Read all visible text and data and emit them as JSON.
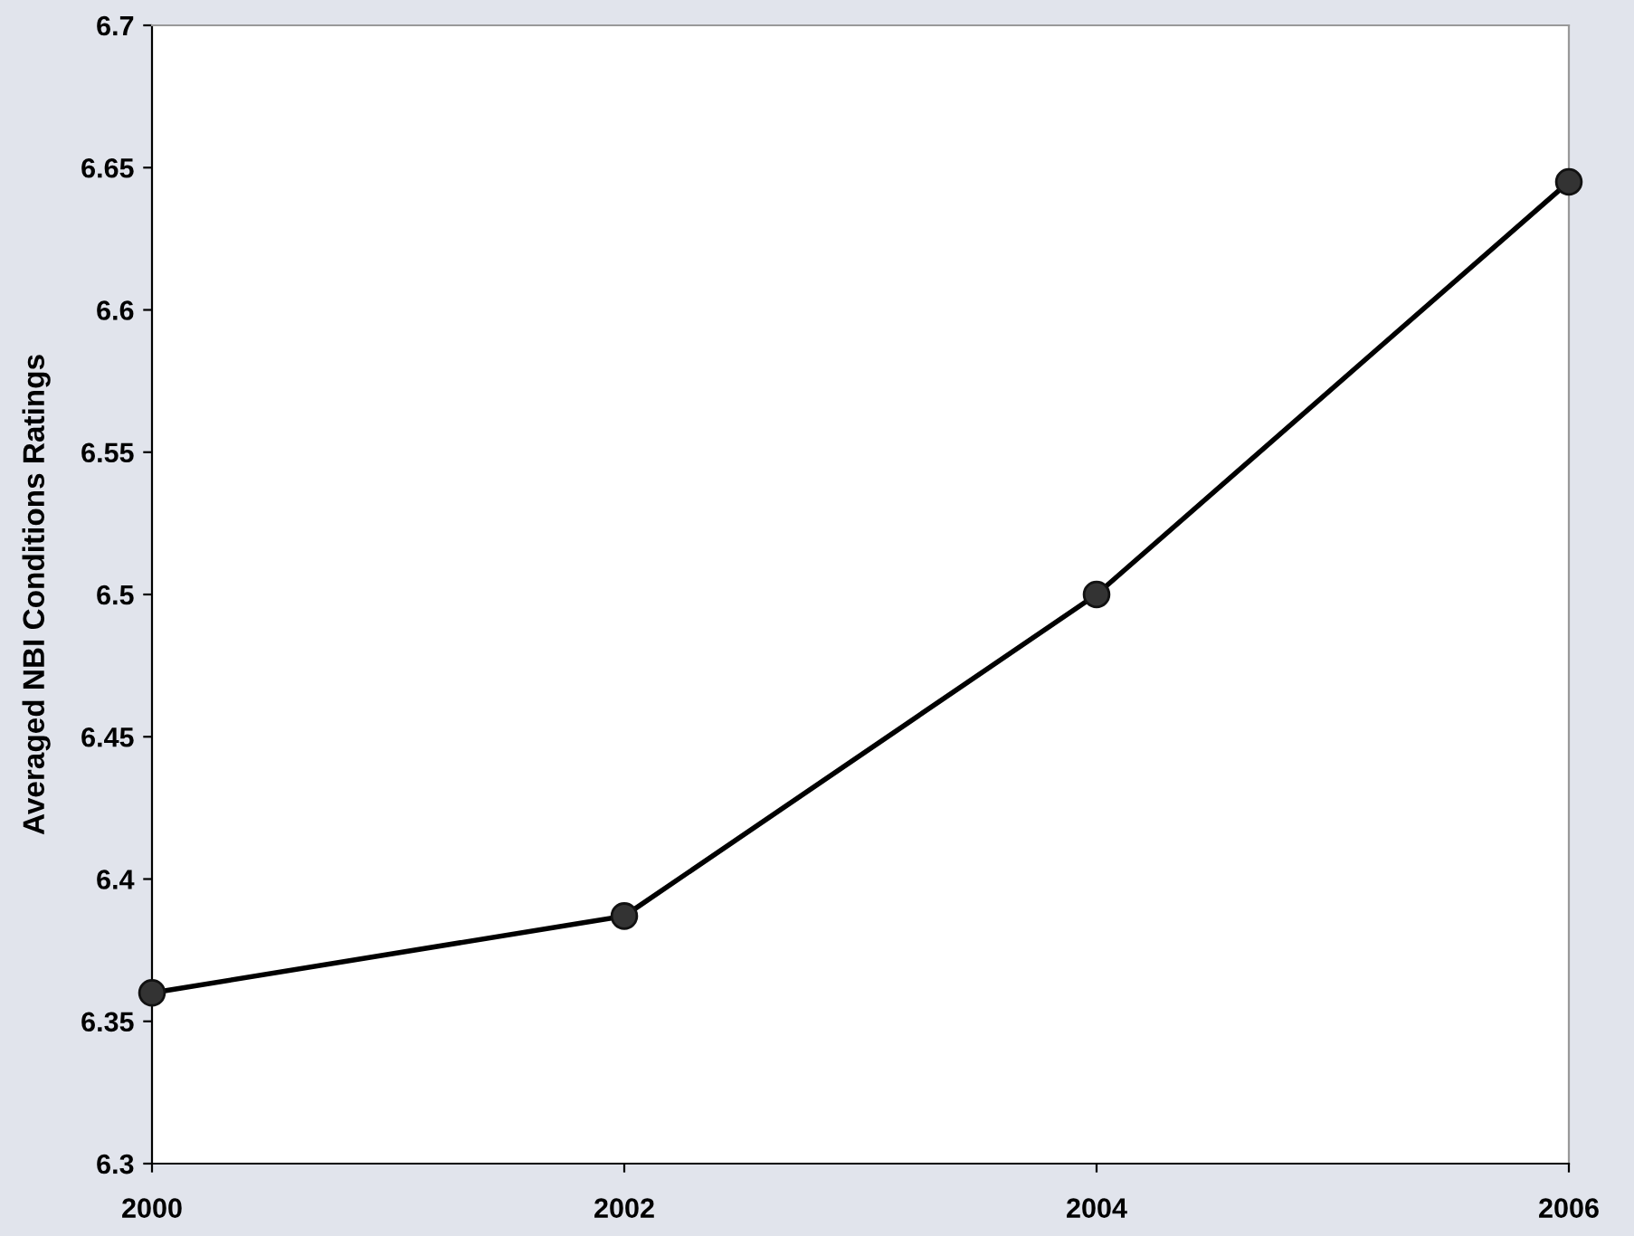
{
  "chart_data": {
    "type": "line",
    "ylabel": "Averaged NBI Conditions Ratings",
    "x": [
      2000,
      2002,
      2004,
      2006
    ],
    "series": [
      {
        "color": "#000000",
        "values": [
          6.36,
          6.387,
          6.5,
          6.645
        ]
      }
    ],
    "xlim": [
      2000,
      2006
    ],
    "xticks": [
      2000,
      2002,
      2004,
      2006
    ],
    "ylim": [
      6.3,
      6.7
    ],
    "yticks": [
      6.3,
      6.35,
      6.4,
      6.45,
      6.5,
      6.55,
      6.6,
      6.65,
      6.7
    ],
    "marker": "circle",
    "line_style": "solid",
    "grid": false,
    "legend": false
  }
}
